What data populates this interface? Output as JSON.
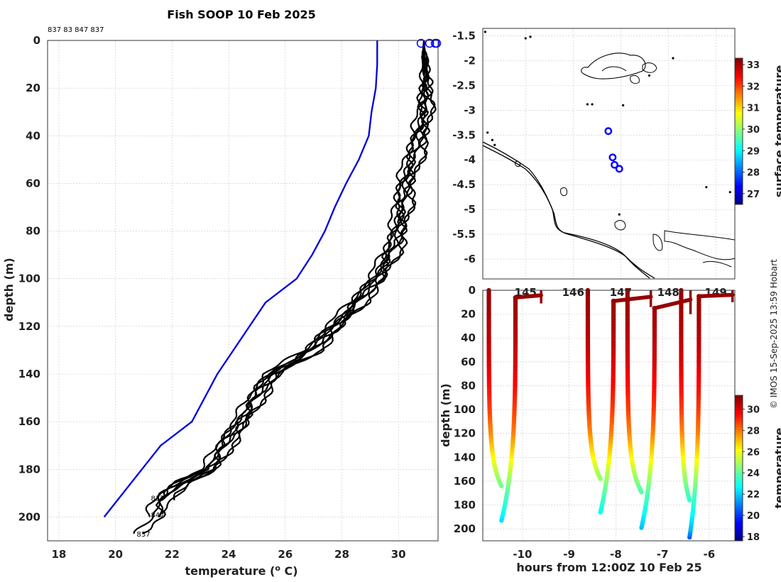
{
  "page": {
    "title": "Fish SOOP 10 Feb 2025",
    "credit": "© IMOS 15-Sep-2025 13:59 Hobart"
  },
  "chart_data": [
    {
      "id": "profiles",
      "type": "line",
      "title": "Fish SOOP 10 Feb 2025",
      "xlabel": "temperature (",
      "xlabel_sup": "o",
      "xlabel_end": " C)",
      "ylabel": "depth (m)",
      "xlim": [
        17.6,
        31.4
      ],
      "ylim": [
        210,
        0
      ],
      "xticks": [
        18,
        20,
        22,
        24,
        26,
        28,
        30
      ],
      "yticks": [
        0,
        20,
        40,
        60,
        80,
        100,
        120,
        140,
        160,
        180,
        200
      ],
      "top_ids": "837 83 847 837",
      "end_labels": [
        {
          "text": "837",
          "t": 21.4,
          "d": 192
        },
        {
          "text": "847",
          "t": 21.4,
          "d": 199
        },
        {
          "text": "837",
          "t": 20.9,
          "d": 207
        }
      ],
      "climatology": {
        "name": "climatology",
        "color": "#0000dd",
        "t": [
          29.25,
          29.25,
          29.2,
          29.05,
          28.95,
          28.6,
          28.15,
          27.75,
          27.4,
          26.95,
          26.4,
          25.3,
          23.6,
          22.7,
          21.6,
          19.6
        ],
        "d": [
          0,
          10,
          20,
          30,
          40,
          50,
          60,
          70,
          80,
          90,
          100,
          110,
          140,
          160,
          170,
          200
        ]
      },
      "surface_markers": {
        "color": "#0000ff",
        "t": [
          30.8,
          31.1,
          31.3,
          31.35
        ]
      },
      "profile_nodes": {
        "d": [
          1,
          5,
          15,
          30,
          45,
          60,
          70,
          85,
          100,
          110,
          120,
          130,
          140,
          150,
          160,
          170,
          180,
          185,
          190,
          195,
          200,
          207
        ],
        "t": [
          30.9,
          30.9,
          30.95,
          30.9,
          30.6,
          30.2,
          30.1,
          29.85,
          29.2,
          28.5,
          27.7,
          26.9,
          25.5,
          24.9,
          24.4,
          23.8,
          23.3,
          22.4,
          21.8,
          21.5,
          21.4,
          20.9
        ]
      },
      "profile_series": [
        {
          "name": "cast-1",
          "shift": 0.0,
          "wiggle": 0.1
        },
        {
          "name": "cast-2",
          "shift": 0.15,
          "wiggle": 0.14
        },
        {
          "name": "cast-3",
          "shift": -0.12,
          "wiggle": 0.12
        },
        {
          "name": "cast-4",
          "shift": 0.25,
          "wiggle": 0.16
        },
        {
          "name": "cast-5",
          "shift": -0.22,
          "wiggle": 0.11
        },
        {
          "name": "cast-6",
          "shift": 0.08,
          "wiggle": 0.18
        },
        {
          "name": "cast-7",
          "shift": -0.05,
          "wiggle": 0.15
        },
        {
          "name": "cast-8",
          "shift": 0.32,
          "wiggle": 0.12
        }
      ]
    },
    {
      "id": "map",
      "type": "scatter",
      "xlim": [
        144.1,
        149.4
      ],
      "ylim": [
        -6.4,
        -1.35
      ],
      "xticks": [
        145,
        146,
        147,
        148,
        149
      ],
      "xticklabels": [
        "145",
        "146",
        "147",
        "148",
        "149"
      ],
      "yticks": [
        -1.5,
        -2,
        -2.5,
        -3,
        -3.5,
        -4,
        -4.5,
        -5,
        -5.5,
        -6
      ],
      "yticklabels": [
        "-1.5",
        "-2",
        "-2.5",
        "-3",
        "-3.5",
        "-4",
        "-4.5",
        "-5",
        "-5.5",
        "-6"
      ],
      "points": [
        {
          "lon": 146.74,
          "lat": -3.42,
          "value": 31.5
        },
        {
          "lon": 146.83,
          "lat": -3.95,
          "value": 31.3
        },
        {
          "lon": 146.87,
          "lat": -4.1,
          "value": 31.2
        },
        {
          "lon": 146.97,
          "lat": -4.18,
          "value": 31.1
        }
      ],
      "marker_color": "#0000ff",
      "colorbar": {
        "label": "surface temperature",
        "min": 26.5,
        "max": 33.3,
        "ticks": [
          27,
          28,
          29,
          30,
          31,
          32,
          33
        ]
      },
      "coast_color": "#000000"
    },
    {
      "id": "section",
      "type": "scatter",
      "xlabel": "hours from 12:00Z 10 Feb 25",
      "ylabel": "depth (m)",
      "xlim": [
        -10.85,
        -5.45
      ],
      "ylim": [
        210,
        0
      ],
      "xticks": [
        -10,
        -9,
        -8,
        -7,
        -6
      ],
      "yticks": [
        0,
        20,
        40,
        60,
        80,
        100,
        120,
        140,
        160,
        180,
        200
      ],
      "depth_nodes": [
        0,
        10,
        20,
        40,
        60,
        80,
        100,
        120,
        140,
        150,
        160,
        170,
        180,
        190,
        200,
        207
      ],
      "temp_nodes": [
        31,
        30.9,
        30.8,
        30.5,
        30.1,
        29.5,
        28.8,
        27.8,
        26.3,
        25.4,
        24.6,
        23.8,
        23.2,
        22.5,
        21.8,
        20.5
      ],
      "casts": [
        {
          "down_start": -10.72,
          "bottom_time": -10.45,
          "up_end": -10.15,
          "max_depth": 193,
          "surface_to": -9.6,
          "surface_depth": 6
        },
        {
          "down_start": -8.6,
          "bottom_time": -8.33,
          "up_end": -8.05,
          "max_depth": 186,
          "surface_to": -7.25,
          "surface_depth": 9
        },
        {
          "down_start": -7.75,
          "bottom_time": -7.45,
          "up_end": -7.17,
          "max_depth": 199,
          "surface_to": -6.4,
          "surface_depth": 15
        },
        {
          "down_start": -6.6,
          "bottom_time": -6.42,
          "up_end": -6.22,
          "max_depth": 207,
          "surface_to": -5.5,
          "surface_depth": 5
        }
      ],
      "colorbar": {
        "label": "temperature",
        "min": 17.6,
        "max": 31.3,
        "ticks": [
          18,
          20,
          22,
          24,
          26,
          28,
          30
        ]
      }
    }
  ]
}
